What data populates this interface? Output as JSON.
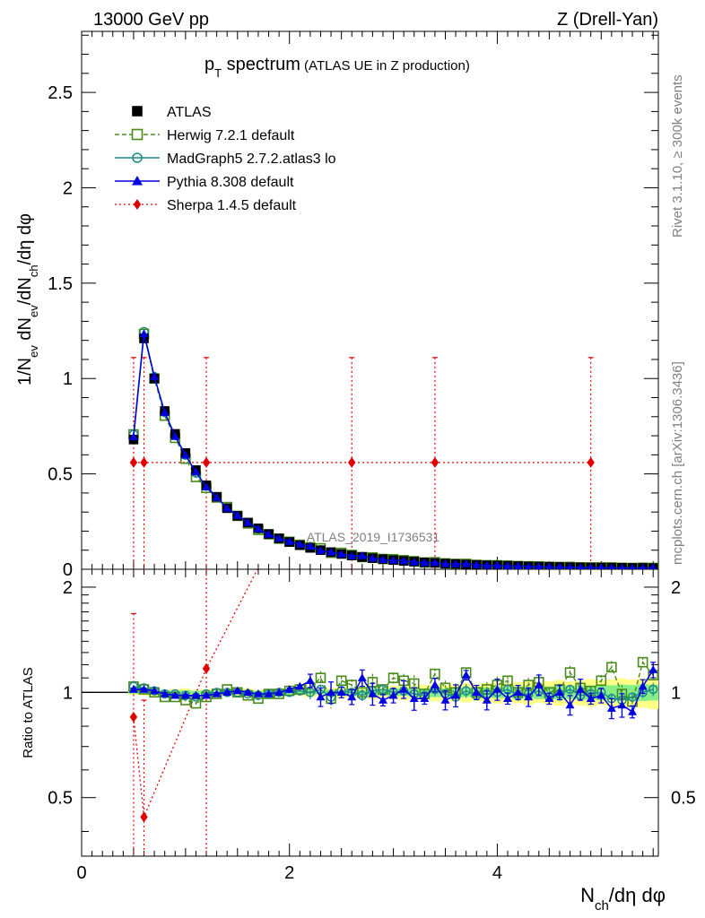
{
  "header": {
    "energy": "13000 GeV pp",
    "process": "Z (Drell-Yan)"
  },
  "chart_data": {
    "type": "line",
    "title_main": "p",
    "title_sub": "T",
    "title_rest": " spectrum",
    "title_note": "(ATLAS UE in Z production)",
    "analysis_label": "ATLAS_2019_I1736531",
    "side_label_top": "Rivet 3.1.10, ≥ 300k events",
    "side_label_bottom": "mcplots.cern.ch [arXiv:1306.3436]",
    "ylabel": "1/N_ev dN_ev/dN_ch/dη dφ",
    "ratio_ylabel": "Ratio to ATLAS",
    "xlabel": "N_ch/dη dφ",
    "xlim": [
      0,
      5.55
    ],
    "ylim": [
      0,
      2.82
    ],
    "ratio_ylim": [
      0.34,
      2.25
    ],
    "x_ticks": [
      "0",
      "2",
      "4"
    ],
    "y_ticks": [
      "0",
      "0.5",
      "1",
      "1.5",
      "2",
      "2.5"
    ],
    "ratio_ticks": [
      "0.5",
      "1",
      "2"
    ],
    "x": [
      0.5,
      0.6,
      0.7,
      0.8,
      0.9,
      1.0,
      1.1,
      1.2,
      1.3,
      1.4,
      1.5,
      1.6,
      1.7,
      1.8,
      1.9,
      2.0,
      2.1,
      2.2,
      2.3,
      2.4,
      2.5,
      2.6,
      2.7,
      2.8,
      2.9,
      3.0,
      3.1,
      3.2,
      3.3,
      3.4,
      3.5,
      3.6,
      3.7,
      3.8,
      3.9,
      4.0,
      4.1,
      4.2,
      4.3,
      4.4,
      4.5,
      4.6,
      4.7,
      4.8,
      4.9,
      5.0,
      5.1,
      5.2,
      5.3,
      5.4,
      5.5
    ],
    "series": [
      {
        "name": "ATLAS",
        "values": [
          0.68,
          1.21,
          1.0,
          0.83,
          0.71,
          0.61,
          0.52,
          0.44,
          0.38,
          0.32,
          0.28,
          0.245,
          0.215,
          0.185,
          0.162,
          0.143,
          0.126,
          0.112,
          0.1,
          0.09,
          0.08,
          0.072,
          0.064,
          0.058,
          0.053,
          0.048,
          0.044,
          0.04,
          0.036,
          0.033,
          0.03,
          0.028,
          0.025,
          0.023,
          0.021,
          0.02,
          0.018,
          0.017,
          0.015,
          0.014,
          0.013,
          0.012,
          0.011,
          0.01,
          0.0095,
          0.009,
          0.0085,
          0.008,
          0.0075,
          0.007,
          0.0065
        ]
      },
      {
        "name": "Herwig 7.2.1 default",
        "ratio": [
          1.04,
          1.02,
          1.0,
          0.97,
          0.97,
          0.95,
          0.93,
          0.97,
          0.99,
          1.02,
          1.0,
          0.98,
          0.96,
          0.99,
          0.99,
          1.01,
          1.02,
          1.03,
          1.1,
          0.96,
          1.08,
          1.05,
          1.0,
          1.07,
          1.02,
          1.1,
          1.08,
          1.06,
          0.99,
          1.13,
          1.03,
          1.0,
          1.14,
          1.0,
          1.02,
          1.05,
          1.08,
          1.0,
          1.05,
          1.07,
          1.0,
          1.02,
          1.14,
          1.03,
          1.01,
          1.08,
          1.18,
          0.99,
          0.94,
          1.22,
          1.12
        ]
      },
      {
        "name": "MadGraph5 2.7.2.atlas3 lo",
        "ratio": [
          1.04,
          1.03,
          1.01,
          0.99,
          0.99,
          0.98,
          0.97,
          0.99,
          1.0,
          1.0,
          1.0,
          0.99,
          0.98,
          0.99,
          1.0,
          1.0,
          1.01,
          1.0,
          1.02,
          0.97,
          1.01,
          1.0,
          0.98,
          1.01,
          1.02,
          1.0,
          1.01,
          0.99,
          0.98,
          1.02,
          0.99,
          0.97,
          1.01,
          0.98,
          0.99,
          1.0,
          1.02,
          0.98,
          0.99,
          1.01,
          0.97,
          0.99,
          1.02,
          0.98,
          0.99,
          1.0,
          0.96,
          0.95,
          0.97,
          1.0,
          1.02
        ]
      },
      {
        "name": "Pythia 8.308 default",
        "ratio": [
          1.02,
          1.02,
          1.01,
          0.99,
          0.98,
          0.98,
          0.98,
          0.98,
          0.99,
          1.0,
          1.01,
          1.0,
          0.99,
          0.99,
          1.0,
          1.02,
          1.04,
          1.08,
          0.97,
          1.0,
          1.0,
          0.97,
          1.1,
          0.99,
          0.95,
          0.98,
          1.02,
          0.96,
          0.96,
          1.05,
          0.95,
          0.98,
          1.12,
          1.0,
          0.95,
          1.02,
          0.96,
          1.0,
          0.97,
          1.05,
          0.96,
          1.0,
          0.92,
          1.02,
          0.96,
          0.98,
          0.9,
          0.92,
          0.88,
          1.04,
          1.16
        ]
      },
      {
        "name": "Sherpa 1.4.5 default",
        "points": [
          [
            0.5,
            0.56
          ],
          [
            0.6,
            0.56
          ],
          [
            1.2,
            0.56
          ],
          [
            2.6,
            0.56
          ],
          [
            3.4,
            0.56
          ],
          [
            4.9,
            0.56
          ]
        ],
        "ratio_points": [
          [
            0.5,
            0.85
          ],
          [
            0.6,
            0.44
          ],
          [
            1.2,
            1.17
          ]
        ]
      }
    ],
    "legend_position": "top-left"
  },
  "colors": {
    "atlas": "#000000",
    "herwig": "#4a8c1c",
    "madgraph": "#1a8a8a",
    "pythia": "#0000e0",
    "sherpa": "#e00000",
    "band_yellow": "#ffff88",
    "band_green": "#88ee88",
    "side_text": "#808080"
  }
}
